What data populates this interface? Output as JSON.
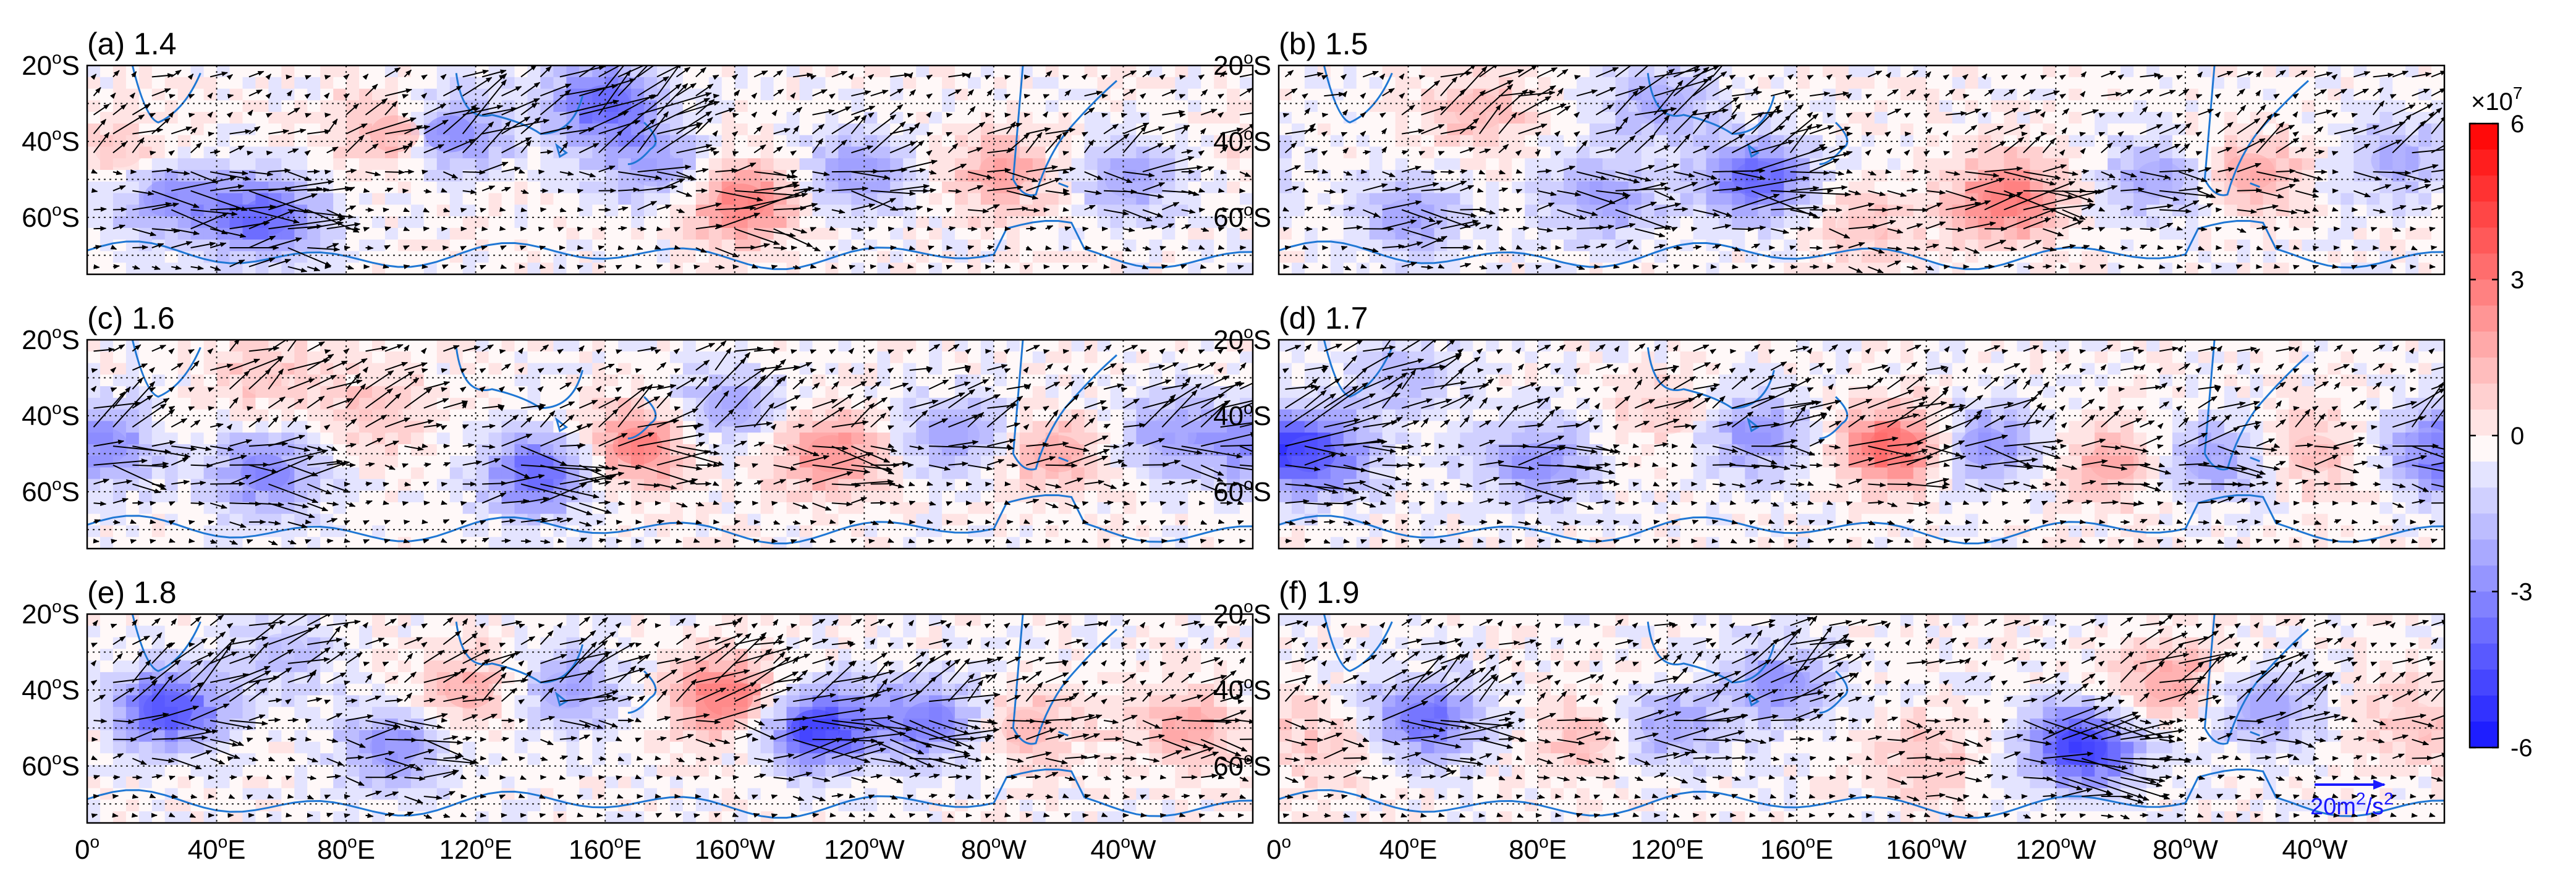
{
  "figure": {
    "description_free": true
  },
  "chart_data": [
    {
      "type": "heatmap",
      "panel": "(a)",
      "value": "1.4",
      "title": "(a) 1.4",
      "blobs": [
        {
          "lon": 55,
          "lat": -60,
          "v": -3.5
        },
        {
          "lon": 25,
          "lat": -55,
          "v": -2.5
        },
        {
          "lon": 95,
          "lat": -38,
          "v": 2.2
        },
        {
          "lon": 112,
          "lat": -38,
          "v": -3.0
        },
        {
          "lon": 160,
          "lat": -30,
          "v": -3.5
        },
        {
          "lon": 175,
          "lat": -47,
          "v": -2.2
        },
        {
          "lon": 202,
          "lat": -56,
          "v": 3.0
        },
        {
          "lon": 238,
          "lat": -48,
          "v": -2.2
        },
        {
          "lon": 283,
          "lat": -48,
          "v": 2.0
        },
        {
          "lon": 322,
          "lat": -50,
          "v": -2.0
        },
        {
          "lon": 10,
          "lat": -42,
          "v": 1.2
        }
      ]
    },
    {
      "type": "heatmap",
      "panel": "(b)",
      "value": "1.5",
      "title": "(b) 1.5",
      "blobs": [
        {
          "lon": 40,
          "lat": -60,
          "v": -2.0
        },
        {
          "lon": 62,
          "lat": -32,
          "v": 1.6
        },
        {
          "lon": 100,
          "lat": -55,
          "v": -2.2
        },
        {
          "lon": 148,
          "lat": -50,
          "v": -3.6
        },
        {
          "lon": 118,
          "lat": -30,
          "v": -2.0
        },
        {
          "lon": 225,
          "lat": -55,
          "v": 3.2
        },
        {
          "lon": 272,
          "lat": -50,
          "v": -2.0
        },
        {
          "lon": 300,
          "lat": -48,
          "v": 1.8
        },
        {
          "lon": 345,
          "lat": -45,
          "v": -1.8
        },
        {
          "lon": 180,
          "lat": -62,
          "v": 1.2
        }
      ]
    },
    {
      "type": "heatmap",
      "panel": "(c)",
      "value": "1.6",
      "title": "(c) 1.6",
      "blobs": [
        {
          "lon": 5,
          "lat": -48,
          "v": -2.5
        },
        {
          "lon": 55,
          "lat": -55,
          "v": -2.8
        },
        {
          "lon": 90,
          "lat": -40,
          "v": 1.2
        },
        {
          "lon": 140,
          "lat": -55,
          "v": -3.5
        },
        {
          "lon": 170,
          "lat": -48,
          "v": 3.0
        },
        {
          "lon": 198,
          "lat": -38,
          "v": -2.0
        },
        {
          "lon": 230,
          "lat": -50,
          "v": 2.6
        },
        {
          "lon": 268,
          "lat": -45,
          "v": -2.0
        },
        {
          "lon": 300,
          "lat": -50,
          "v": 1.8
        },
        {
          "lon": 335,
          "lat": -45,
          "v": -2.2
        },
        {
          "lon": 55,
          "lat": -30,
          "v": 1.2
        }
      ]
    },
    {
      "type": "heatmap",
      "panel": "(d)",
      "value": "1.7",
      "title": "(d) 1.7",
      "blobs": [
        {
          "lon": 10,
          "lat": -50,
          "v": -3.8
        },
        {
          "lon": 80,
          "lat": -52,
          "v": -2.6
        },
        {
          "lon": 120,
          "lat": -40,
          "v": 1.0
        },
        {
          "lon": 148,
          "lat": -45,
          "v": -2.5
        },
        {
          "lon": 190,
          "lat": -48,
          "v": 3.6
        },
        {
          "lon": 218,
          "lat": -48,
          "v": -2.6
        },
        {
          "lon": 258,
          "lat": -52,
          "v": 1.8
        },
        {
          "lon": 288,
          "lat": -52,
          "v": -2.2
        },
        {
          "lon": 320,
          "lat": -50,
          "v": 1.4
        },
        {
          "lon": 355,
          "lat": -48,
          "v": -1.8
        },
        {
          "lon": 38,
          "lat": -30,
          "v": -1.6
        }
      ]
    },
    {
      "type": "heatmap",
      "panel": "(e)",
      "value": "1.8",
      "title": "(e) 1.8",
      "blobs": [
        {
          "lon": 25,
          "lat": -45,
          "v": -4.0
        },
        {
          "lon": 95,
          "lat": -55,
          "v": -2.5
        },
        {
          "lon": 118,
          "lat": -40,
          "v": 1.8
        },
        {
          "lon": 148,
          "lat": -40,
          "v": -2.2
        },
        {
          "lon": 198,
          "lat": -42,
          "v": 3.2
        },
        {
          "lon": 225,
          "lat": -50,
          "v": -4.5
        },
        {
          "lon": 260,
          "lat": -48,
          "v": -3.0
        },
        {
          "lon": 290,
          "lat": -50,
          "v": 1.6
        },
        {
          "lon": 340,
          "lat": -50,
          "v": 1.8
        },
        {
          "lon": 60,
          "lat": -30,
          "v": -1.4
        }
      ]
    },
    {
      "type": "heatmap",
      "panel": "(f)",
      "value": "1.9",
      "title": "(f) 1.9",
      "blobs": [
        {
          "lon": 45,
          "lat": -48,
          "v": -3.5
        },
        {
          "lon": 95,
          "lat": -52,
          "v": 1.4
        },
        {
          "lon": 120,
          "lat": -50,
          "v": -2.2
        },
        {
          "lon": 155,
          "lat": -38,
          "v": -2.4
        },
        {
          "lon": 200,
          "lat": -58,
          "v": 1.2
        },
        {
          "lon": 248,
          "lat": -55,
          "v": -4.6
        },
        {
          "lon": 275,
          "lat": -38,
          "v": 2.0
        },
        {
          "lon": 305,
          "lat": -45,
          "v": -2.2
        },
        {
          "lon": 350,
          "lat": -48,
          "v": 1.2
        },
        {
          "lon": 20,
          "lat": -55,
          "v": 1.0
        }
      ]
    }
  ],
  "axes": {
    "y_ticks": [
      {
        "lat": -20,
        "label": "20",
        "deg": "o",
        "hemi": "S"
      },
      {
        "lat": -40,
        "label": "40",
        "deg": "o",
        "hemi": "S"
      },
      {
        "lat": -60,
        "label": "60",
        "deg": "o",
        "hemi": "S"
      }
    ],
    "x_ticks": [
      {
        "lon": 0,
        "label": "0",
        "deg": "o",
        "hemi": ""
      },
      {
        "lon": 40,
        "label": "40",
        "deg": "o",
        "hemi": "E"
      },
      {
        "lon": 80,
        "label": "80",
        "deg": "o",
        "hemi": "E"
      },
      {
        "lon": 120,
        "label": "120",
        "deg": "o",
        "hemi": "E"
      },
      {
        "lon": 160,
        "label": "160",
        "deg": "o",
        "hemi": "E"
      },
      {
        "lon": 200,
        "label": "160",
        "deg": "o",
        "hemi": "W"
      },
      {
        "lon": 240,
        "label": "120",
        "deg": "o",
        "hemi": "W"
      },
      {
        "lon": 280,
        "label": "80",
        "deg": "o",
        "hemi": "W"
      },
      {
        "lon": 320,
        "label": "40",
        "deg": "o",
        "hemi": "W"
      }
    ],
    "lon_range": [
      0,
      360
    ],
    "lat_range": [
      -75,
      -20
    ],
    "grid": "dotted"
  },
  "colorbar": {
    "ticks": [
      "6",
      "3",
      "0",
      "-3",
      "-6"
    ],
    "tick_values": [
      6,
      3,
      0,
      -3,
      -6
    ],
    "range": [
      -6,
      6
    ],
    "exponent": "7",
    "exponent_prefix": "×10",
    "colors": {
      "min": "#0000ff",
      "mid": "#ffffff",
      "max": "#ff0000"
    },
    "levels": 24
  },
  "reference_vector": {
    "label": "20m",
    "sup1": "2",
    "mid": "/s",
    "sup2": "2",
    "color": "#1a1aff"
  },
  "colors": {
    "coast": "#1f77d4",
    "arrow": "#000000",
    "grid": "#222222",
    "axis": "#000000"
  }
}
